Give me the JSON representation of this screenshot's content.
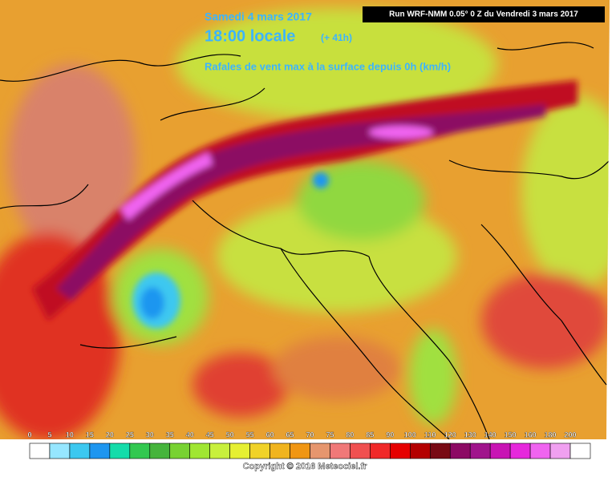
{
  "header": {
    "date": "Samedi 4 mars 2017",
    "time": "18:00 locale",
    "lead": "(+ 41h)",
    "field": "Rafales de vent max à la surface depuis 0h (km/h)",
    "run": "Run WRF-NMM 0.05° 0 Z du Vendredi 3 mars 2017"
  },
  "legend": {
    "labels": [
      0,
      5,
      10,
      15,
      20,
      25,
      30,
      35,
      40,
      45,
      50,
      55,
      60,
      65,
      70,
      75,
      80,
      85,
      90,
      100,
      110,
      120,
      130,
      140,
      150,
      160,
      180,
      200
    ],
    "colors": [
      "#ffffff",
      "#96e6ff",
      "#3cc8f0",
      "#1e96f0",
      "#14dcaa",
      "#32c850",
      "#46b43c",
      "#78d232",
      "#a0e632",
      "#c8f03c",
      "#e6f032",
      "#f0d228",
      "#f0b41e",
      "#f09614",
      "#e6966e",
      "#f07878",
      "#f05050",
      "#f02828",
      "#e60000",
      "#b40000",
      "#780a14",
      "#8c0a64",
      "#a0148c",
      "#c814b4",
      "#e628dc",
      "#f064f0",
      "#f0a0f0",
      "#ffffff"
    ]
  },
  "footer": {
    "copyright": "Copyright © 2016 Meteociel.fr"
  }
}
